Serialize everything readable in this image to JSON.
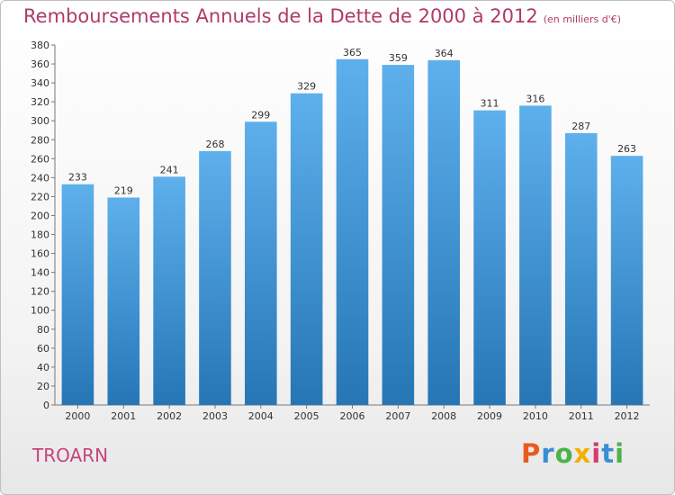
{
  "title": "Remboursements Annuels de la Dette de 2000 à 2012",
  "unit": "(en milliers d'€)",
  "commune": "TROARN",
  "logo": {
    "letters": [
      "P",
      "r",
      "o",
      "x",
      "i",
      "t",
      "i"
    ]
  },
  "colors": {
    "title": "#b03a6b",
    "bar_top": "#5eb0ec",
    "bar_bottom": "#2676b6"
  },
  "chart_data": {
    "type": "bar",
    "categories": [
      "2000",
      "2001",
      "2002",
      "2003",
      "2004",
      "2005",
      "2006",
      "2007",
      "2008",
      "2009",
      "2010",
      "2011",
      "2012"
    ],
    "values": [
      233,
      219,
      241,
      268,
      299,
      329,
      365,
      359,
      364,
      311,
      316,
      287,
      263
    ],
    "title": "Remboursements Annuels de la Dette de 2000 à 2012",
    "subtitle": "(en milliers d'€)",
    "xlabel": "",
    "ylabel": "",
    "ylim": [
      0,
      380
    ],
    "yticks": [
      0,
      20,
      40,
      60,
      80,
      100,
      120,
      140,
      160,
      180,
      200,
      220,
      240,
      260,
      280,
      300,
      320,
      340,
      360,
      380
    ],
    "grid": false,
    "data_labels": true
  }
}
